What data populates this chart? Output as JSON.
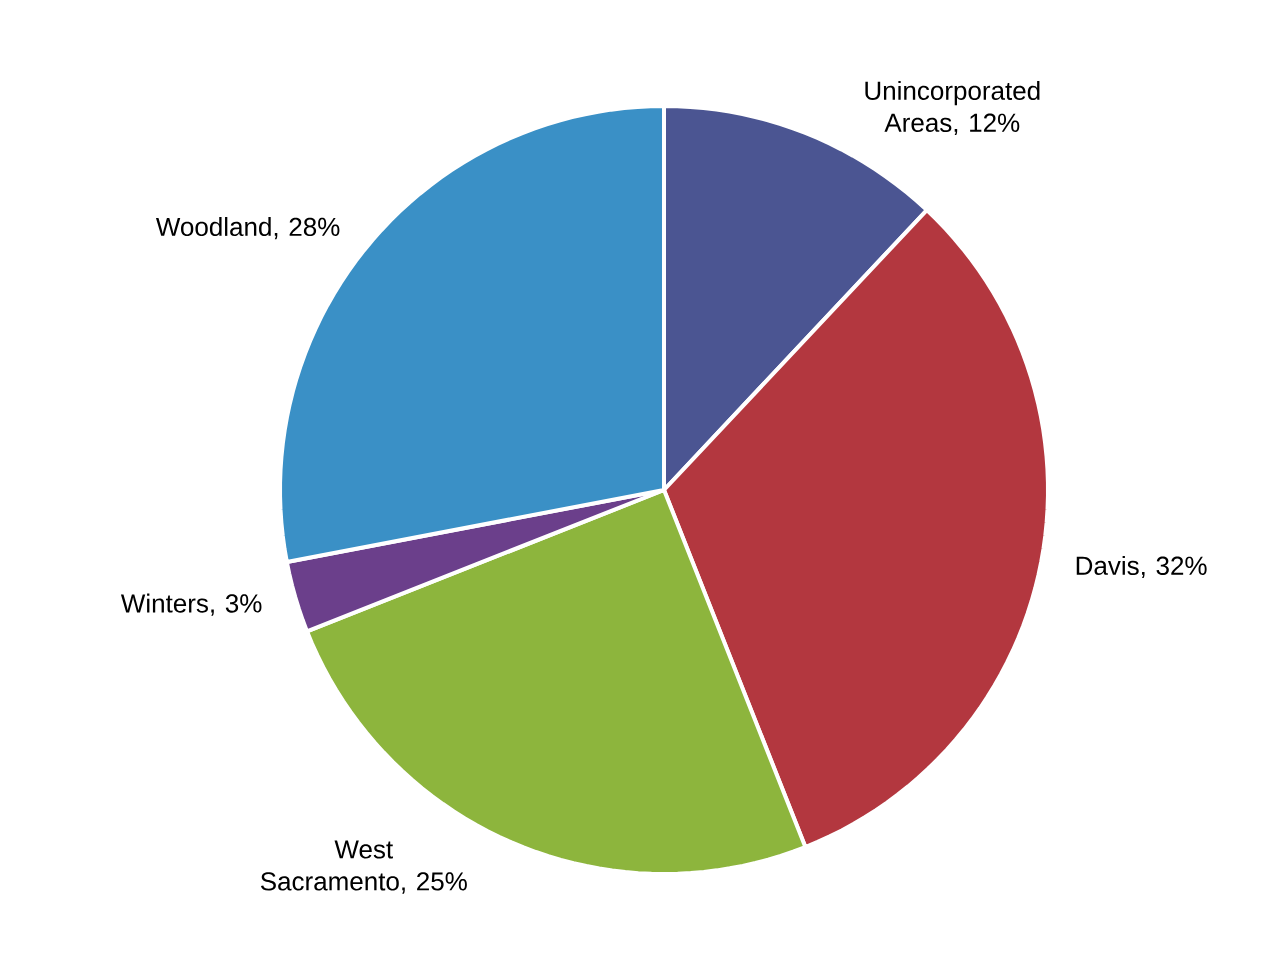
{
  "chart_data": {
    "type": "pie",
    "categories": [
      "Unincorporated Areas, 12%",
      "Davis, 32%",
      "West Sacramento, 25%",
      "Winters, 3%",
      "Woodland, 28%"
    ],
    "values": [
      12,
      32,
      25,
      3,
      28
    ],
    "colors": [
      "#4b5592",
      "#b3373f",
      "#8db53d",
      "#6b3f8b",
      "#3a90c6"
    ]
  }
}
